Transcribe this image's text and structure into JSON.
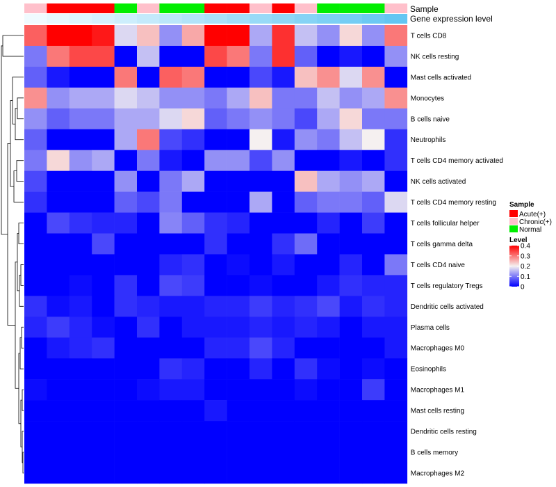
{
  "chart_data": {
    "type": "heatmap",
    "annotations": {
      "sample_label": "Sample",
      "expr_label": "Gene expression level"
    },
    "sample_groups": [
      "Chronic(+)",
      "Acute(+)",
      "Acute(+)",
      "Acute(+)",
      "Normal",
      "Chronic(+)",
      "Normal",
      "Normal",
      "Acute(+)",
      "Acute(+)",
      "Chronic(+)",
      "Acute(+)",
      "Chronic(+)",
      "Normal",
      "Normal",
      "Normal",
      "Chronic(+)"
    ],
    "expression_level": [
      0.02,
      0.04,
      0.06,
      0.08,
      0.1,
      0.12,
      0.14,
      0.16,
      0.18,
      0.2,
      0.22,
      0.24,
      0.26,
      0.28,
      0.3,
      0.32,
      0.34
    ],
    "rows": [
      "T cells CD8",
      "NK cells resting",
      "Mast cells activated",
      "Monocytes",
      "B cells naive",
      "Neutrophils",
      "T cells CD4 memory activated",
      "NK cells activated",
      "T cells CD4 memory resting",
      "T cells follicular helper",
      "T cells gamma delta",
      "T cells CD4 naive",
      "T cells regulatory  Tregs",
      "Dendritic cells activated",
      "Plasma cells",
      "Macrophages M0",
      "Eosinophils",
      "Macrophages M1",
      "Mast cells resting",
      "Dendritic cells resting",
      "B cells memory",
      "Macrophages M2"
    ],
    "values": [
      [
        0.32,
        0.4,
        0.4,
        0.38,
        0.18,
        0.24,
        0.12,
        0.26,
        0.4,
        0.4,
        0.14,
        0.36,
        0.16,
        0.12,
        0.22,
        0.12,
        0.3
      ],
      [
        0.1,
        0.3,
        0.34,
        0.34,
        0.0,
        0.16,
        0.0,
        0.0,
        0.34,
        0.3,
        0.1,
        0.36,
        0.08,
        0.0,
        0.02,
        0.0,
        0.12
      ],
      [
        0.08,
        0.02,
        0.0,
        0.0,
        0.3,
        0.0,
        0.32,
        0.3,
        0.0,
        0.0,
        0.06,
        0.02,
        0.24,
        0.28,
        0.18,
        0.28,
        0.0
      ],
      [
        0.28,
        0.12,
        0.14,
        0.14,
        0.18,
        0.16,
        0.12,
        0.12,
        0.1,
        0.14,
        0.24,
        0.1,
        0.1,
        0.16,
        0.12,
        0.14,
        0.28
      ],
      [
        0.12,
        0.08,
        0.1,
        0.1,
        0.14,
        0.14,
        0.18,
        0.22,
        0.08,
        0.1,
        0.12,
        0.1,
        0.06,
        0.14,
        0.22,
        0.1,
        0.1
      ],
      [
        0.08,
        0.0,
        0.0,
        0.0,
        0.14,
        0.3,
        0.06,
        0.04,
        0.0,
        0.0,
        0.2,
        0.02,
        0.12,
        0.1,
        0.16,
        0.2,
        0.04
      ],
      [
        0.1,
        0.22,
        0.12,
        0.14,
        0.0,
        0.1,
        0.02,
        0.0,
        0.12,
        0.12,
        0.06,
        0.12,
        0.0,
        0.0,
        0.02,
        0.0,
        0.04
      ],
      [
        0.06,
        0.0,
        0.0,
        0.0,
        0.12,
        0.0,
        0.1,
        0.14,
        0.0,
        0.0,
        0.0,
        0.0,
        0.24,
        0.14,
        0.12,
        0.14,
        0.0
      ],
      [
        0.04,
        0.0,
        0.0,
        0.0,
        0.08,
        0.06,
        0.1,
        0.0,
        0.0,
        0.0,
        0.14,
        0.0,
        0.08,
        0.1,
        0.1,
        0.08,
        0.18
      ],
      [
        0.0,
        0.06,
        0.04,
        0.03,
        0.03,
        0.0,
        0.11,
        0.08,
        0.04,
        0.03,
        0.0,
        0.0,
        0.0,
        0.03,
        0.0,
        0.05,
        0.0
      ],
      [
        0.0,
        0.0,
        0.0,
        0.06,
        0.0,
        0.0,
        0.0,
        0.0,
        0.04,
        0.0,
        0.0,
        0.04,
        0.09,
        0.0,
        0.0,
        0.0,
        0.0
      ],
      [
        0.0,
        0.0,
        0.0,
        0.0,
        0.0,
        0.0,
        0.03,
        0.04,
        0.0,
        0.01,
        0.0,
        0.02,
        0.0,
        0.0,
        0.03,
        0.0,
        0.1
      ],
      [
        0.0,
        0.0,
        0.01,
        0.0,
        0.04,
        0.0,
        0.06,
        0.05,
        0.0,
        0.0,
        0.01,
        0.0,
        0.0,
        0.02,
        0.04,
        0.03,
        0.03
      ],
      [
        0.04,
        0.01,
        0.02,
        0.0,
        0.04,
        0.03,
        0.02,
        0.02,
        0.03,
        0.03,
        0.05,
        0.03,
        0.04,
        0.06,
        0.02,
        0.04,
        0.03
      ],
      [
        0.03,
        0.05,
        0.03,
        0.01,
        0.0,
        0.04,
        0.0,
        0.02,
        0.02,
        0.02,
        0.03,
        0.02,
        0.03,
        0.02,
        0.0,
        0.02,
        0.02
      ],
      [
        0.0,
        0.02,
        0.03,
        0.04,
        0.0,
        0.0,
        0.0,
        0.0,
        0.03,
        0.03,
        0.06,
        0.03,
        0.0,
        0.0,
        0.0,
        0.0,
        0.02
      ],
      [
        0.0,
        0.0,
        0.0,
        0.0,
        0.0,
        0.0,
        0.04,
        0.03,
        0.0,
        0.0,
        0.03,
        0.0,
        0.04,
        0.01,
        0.0,
        0.01,
        0.0
      ],
      [
        0.01,
        0.0,
        0.0,
        0.0,
        0.0,
        0.01,
        0.02,
        0.02,
        0.0,
        0.0,
        0.0,
        0.0,
        0.01,
        0.0,
        0.0,
        0.05,
        0.0
      ],
      [
        0.0,
        0.0,
        0.0,
        0.0,
        0.0,
        0.0,
        0.0,
        0.0,
        0.02,
        0.0,
        0.0,
        0.0,
        0.0,
        0.0,
        0.0,
        0.0,
        0.0
      ],
      [
        0.0,
        0.0,
        0.0,
        0.0,
        0.0,
        0.0,
        0.0,
        0.0,
        0.0,
        0.0,
        0.0,
        0.0,
        0.0,
        0.0,
        0.0,
        0.0,
        0.0
      ],
      [
        0.0,
        0.0,
        0.0,
        0.0,
        0.0,
        0.0,
        0.0,
        0.0,
        0.0,
        0.0,
        0.0,
        0.0,
        0.0,
        0.0,
        0.0,
        0.0,
        0.0
      ],
      [
        0.0,
        0.0,
        0.0,
        0.0,
        0.0,
        0.0,
        0.0,
        0.0,
        0.0,
        0.0,
        0.0,
        0.0,
        0.0,
        0.0,
        0.0,
        0.0,
        0.0
      ]
    ],
    "color_scale": {
      "min": 0,
      "max": 0.4,
      "stops": [
        {
          "value": 0.0,
          "color": "#0000ff"
        },
        {
          "value": 0.2,
          "color": "#f5f0f0"
        },
        {
          "value": 0.4,
          "color": "#ff0000"
        }
      ]
    },
    "legend": {
      "sample_title": "Sample",
      "sample_entries": [
        {
          "label": "Acute(+)",
          "color": "#ff0000"
        },
        {
          "label": "Chronic(+)",
          "color": "#ffc0cb"
        },
        {
          "label": "Normal",
          "color": "#00ee00"
        }
      ],
      "level_title": "Level",
      "level_ticks": [
        {
          "value": 0.4,
          "label": "0.4"
        },
        {
          "value": 0.3,
          "label": "0.3"
        },
        {
          "value": 0.2,
          "label": "0.2"
        },
        {
          "value": 0.1,
          "label": "0.1"
        },
        {
          "value": 0.0,
          "label": "0"
        }
      ]
    },
    "expression_colors": {
      "low": "#f0fbff",
      "high": "#63c6f2"
    }
  }
}
